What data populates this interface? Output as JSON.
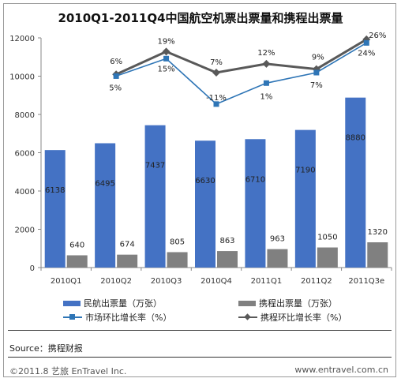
{
  "chart_data": {
    "type": "bar",
    "title": "2010Q1-2011Q4中国航空机票出票量和携程出票量",
    "categories": [
      "2010Q1",
      "2010Q2",
      "2010Q3",
      "2010Q4",
      "2011Q1",
      "2011Q2",
      "2011Q3e"
    ],
    "ylim": [
      0,
      12000
    ],
    "yticks": [
      0,
      2000,
      4000,
      6000,
      8000,
      10000,
      12000
    ],
    "grid": false,
    "legend_position": "bottom",
    "series": [
      {
        "name": "民航出票量（万张）",
        "type": "bar",
        "color": "#4472c4",
        "values": [
          6138,
          6495,
          7437,
          6630,
          6710,
          7190,
          8880
        ],
        "labels": [
          "6138",
          "6495",
          "7437",
          "6630",
          "6710",
          "7190",
          "8880"
        ]
      },
      {
        "name": "携程出票量（万张）",
        "type": "bar",
        "color": "#808080",
        "values": [
          640,
          674,
          805,
          863,
          963,
          1050,
          1320
        ],
        "labels": [
          "640",
          "674",
          "805",
          "863",
          "963",
          "1050",
          "1320"
        ]
      },
      {
        "name": "市场环比增长率（%）",
        "type": "line",
        "color": "#2e75b6",
        "marker": "square",
        "values": [
          null,
          5,
          15,
          -11,
          1,
          7,
          24
        ],
        "labels": [
          null,
          "5%",
          "15%",
          "-11%",
          "1%",
          "7%",
          "24%"
        ]
      },
      {
        "name": "携程环比增长率（%）",
        "type": "line",
        "color": "#595959",
        "marker": "diamond",
        "values": [
          null,
          6,
          19,
          7,
          12,
          9,
          26
        ],
        "labels": [
          null,
          "6%",
          "19%",
          "7%",
          "12%",
          "9%",
          "26%"
        ]
      }
    ]
  },
  "footer": {
    "source": "Source：携程财报",
    "copyright": "©2011.8 艺旅 EnTravel Inc.",
    "website": "www.entravel.com.cn"
  }
}
